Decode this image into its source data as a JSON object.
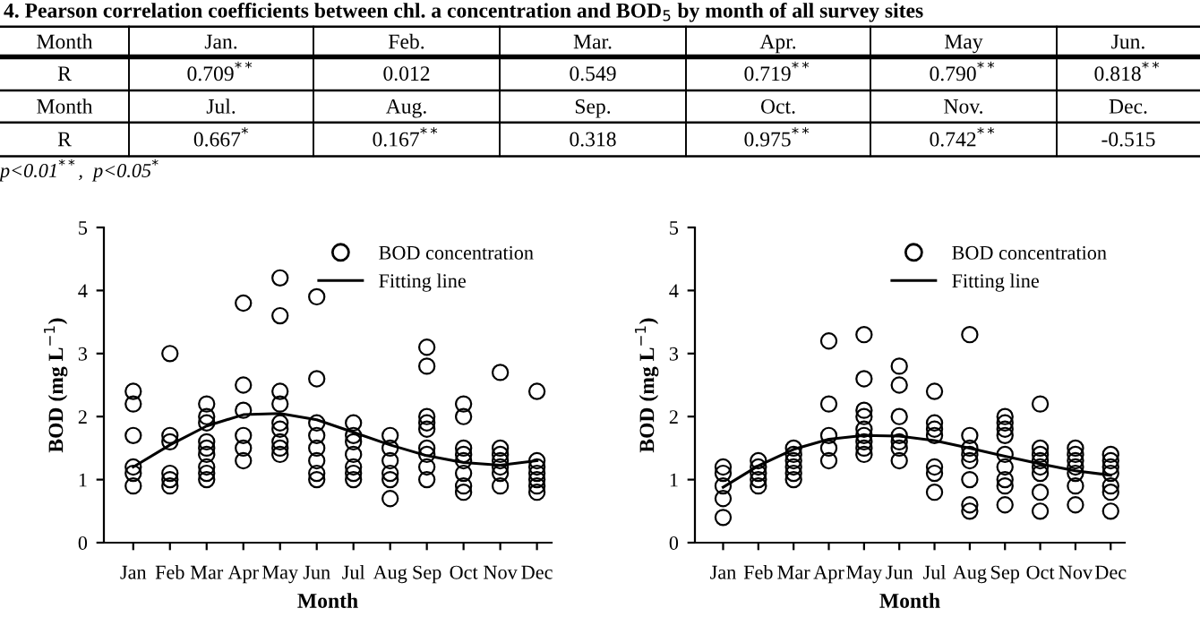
{
  "chart_data": [
    {
      "type": "other",
      "title": "4. Pearson correlation coefficients between chl. a concentration and BOD$_{5}$ by month of all survey sites",
      "annotations": [
        "Month",
        "Jan.",
        "Feb.",
        "Mar.",
        "Apr.",
        "May",
        "Jun.",
        "R",
        "0.709$^{**}$",
        "0.012",
        "0.549",
        "0.719$^{**}$",
        "0.790$^{**}$",
        "0.818$^{**}$",
        "Month",
        "Jul.",
        "Aug.",
        "Sep.",
        "Oct.",
        "Nov.",
        "Dec.",
        "R",
        "0.667$^{*}$",
        "0.167$^{**}$",
        "0.318",
        "0.975$^{**}$",
        "0.742$^{**}$",
        "-0.515",
        "p<0.01$^{**}$,  p<0.05$^{*}$"
      ]
    },
    {
      "type": "scatter",
      "xlabel": "Month",
      "ylabel": "BOD (mg L$^{−1}$)",
      "categories": [
        "Jan",
        "Feb",
        "Mar",
        "Apr",
        "May",
        "Jun",
        "Jul",
        "Aug",
        "Sep",
        "Oct",
        "Nov",
        "Dec"
      ],
      "ylim": [
        0,
        5
      ],
      "yticks": [
        0,
        1,
        2,
        3,
        4,
        5
      ],
      "grid": false,
      "legend": "top right",
      "series": [
        {
          "name": "BOD concentration",
          "type": "scatter",
          "marker": "circle",
          "color": "#000000",
          "x": [
            "Jan",
            "Jan",
            "Jan",
            "Jan",
            "Jan",
            "Jan",
            "Feb",
            "Feb",
            "Feb",
            "Feb",
            "Feb",
            "Feb",
            "Mar",
            "Mar",
            "Mar",
            "Mar",
            "Mar",
            "Mar",
            "Mar",
            "Mar",
            "Mar",
            "Apr",
            "Apr",
            "Apr",
            "Apr",
            "Apr",
            "Apr",
            "May",
            "May",
            "May",
            "May",
            "May",
            "May",
            "May",
            "May",
            "May",
            "Jun",
            "Jun",
            "Jun",
            "Jun",
            "Jun",
            "Jun",
            "Jun",
            "Jun",
            "Jul",
            "Jul",
            "Jul",
            "Jul",
            "Jul",
            "Jul",
            "Jul",
            "Aug",
            "Aug",
            "Aug",
            "Aug",
            "Aug",
            "Aug",
            "Sep",
            "Sep",
            "Sep",
            "Sep",
            "Sep",
            "Sep",
            "Sep",
            "Sep",
            "Sep",
            "Oct",
            "Oct",
            "Oct",
            "Oct",
            "Oct",
            "Oct",
            "Oct",
            "Oct",
            "Nov",
            "Nov",
            "Nov",
            "Nov",
            "Nov",
            "Nov",
            "Nov",
            "Dec",
            "Dec",
            "Dec",
            "Dec",
            "Dec",
            "Dec",
            "Dec"
          ],
          "values": [
            2.4,
            2.2,
            1.7,
            1.2,
            1.1,
            0.9,
            3.0,
            1.7,
            1.6,
            1.1,
            1.0,
            0.9,
            2.2,
            2.0,
            1.9,
            1.6,
            1.5,
            1.4,
            1.2,
            1.1,
            1.0,
            3.8,
            2.5,
            2.1,
            1.7,
            1.5,
            1.3,
            4.2,
            3.6,
            2.4,
            2.2,
            1.9,
            1.8,
            1.6,
            1.5,
            1.4,
            3.9,
            2.6,
            1.9,
            1.7,
            1.5,
            1.3,
            1.1,
            1.0,
            1.9,
            1.7,
            1.6,
            1.4,
            1.2,
            1.1,
            1.0,
            1.7,
            1.5,
            1.3,
            1.1,
            1.0,
            0.7,
            3.1,
            2.8,
            2.0,
            1.9,
            1.8,
            1.5,
            1.4,
            1.2,
            1.0,
            2.2,
            2.0,
            1.5,
            1.4,
            1.3,
            1.1,
            0.9,
            0.8,
            2.7,
            1.5,
            1.4,
            1.3,
            1.2,
            1.1,
            0.9,
            2.4,
            1.3,
            1.2,
            1.1,
            1.0,
            0.9,
            0.8
          ]
        },
        {
          "name": "Fitting line",
          "type": "line",
          "marker": "none",
          "line_style": "solid",
          "color": "#000000",
          "values": [
            1.2,
            1.55,
            1.85,
            2.03,
            2.05,
            1.95,
            1.75,
            1.55,
            1.38,
            1.27,
            1.23,
            1.3
          ]
        }
      ]
    },
    {
      "type": "scatter",
      "xlabel": "Month",
      "ylabel": "BOD (mg L$^{−1}$)",
      "categories": [
        "Jan",
        "Feb",
        "Mar",
        "Apr",
        "May",
        "Jun",
        "Jul",
        "Aug",
        "Sep",
        "Oct",
        "Nov",
        "Dec"
      ],
      "ylim": [
        0,
        5
      ],
      "yticks": [
        0,
        1,
        2,
        3,
        4,
        5
      ],
      "grid": false,
      "legend": "top right",
      "series": [
        {
          "name": "BOD concentration",
          "type": "scatter",
          "marker": "circle",
          "color": "#000000",
          "x": [
            "Jan",
            "Jan",
            "Jan",
            "Jan",
            "Jan",
            "Feb",
            "Feb",
            "Feb",
            "Feb",
            "Feb",
            "Mar",
            "Mar",
            "Mar",
            "Mar",
            "Mar",
            "Mar",
            "Apr",
            "Apr",
            "Apr",
            "Apr",
            "Apr",
            "May",
            "May",
            "May",
            "May",
            "May",
            "May",
            "May",
            "May",
            "May",
            "Jun",
            "Jun",
            "Jun",
            "Jun",
            "Jun",
            "Jun",
            "Jun",
            "Jul",
            "Jul",
            "Jul",
            "Jul",
            "Jul",
            "Jul",
            "Jul",
            "Aug",
            "Aug",
            "Aug",
            "Aug",
            "Aug",
            "Aug",
            "Aug",
            "Aug",
            "Sep",
            "Sep",
            "Sep",
            "Sep",
            "Sep",
            "Sep",
            "Sep",
            "Sep",
            "Sep",
            "Oct",
            "Oct",
            "Oct",
            "Oct",
            "Oct",
            "Oct",
            "Oct",
            "Oct",
            "Nov",
            "Nov",
            "Nov",
            "Nov",
            "Nov",
            "Nov",
            "Nov",
            "Dec",
            "Dec",
            "Dec",
            "Dec",
            "Dec",
            "Dec",
            "Dec"
          ],
          "values": [
            1.2,
            1.1,
            0.9,
            0.7,
            0.4,
            1.3,
            1.2,
            1.1,
            1.0,
            0.9,
            1.5,
            1.4,
            1.3,
            1.2,
            1.1,
            1.0,
            3.2,
            2.2,
            1.7,
            1.5,
            1.3,
            3.3,
            2.6,
            2.1,
            2.0,
            1.8,
            1.7,
            1.6,
            1.5,
            1.4,
            2.8,
            2.5,
            2.0,
            1.7,
            1.6,
            1.5,
            1.3,
            2.4,
            1.9,
            1.8,
            1.7,
            1.2,
            1.1,
            0.8,
            3.3,
            1.7,
            1.5,
            1.4,
            1.3,
            1.0,
            0.6,
            0.5,
            2.0,
            1.9,
            1.8,
            1.7,
            1.4,
            1.2,
            1.0,
            0.9,
            0.6,
            2.2,
            1.5,
            1.4,
            1.3,
            1.2,
            1.1,
            0.8,
            0.5,
            1.5,
            1.4,
            1.3,
            1.2,
            1.1,
            0.9,
            0.6,
            1.4,
            1.3,
            1.2,
            1.1,
            0.9,
            0.8,
            0.5
          ]
        },
        {
          "name": "Fitting line",
          "type": "line",
          "marker": "none",
          "line_style": "solid",
          "color": "#000000",
          "values": [
            0.88,
            1.22,
            1.48,
            1.64,
            1.7,
            1.69,
            1.62,
            1.5,
            1.37,
            1.25,
            1.14,
            1.07
          ]
        }
      ]
    }
  ]
}
